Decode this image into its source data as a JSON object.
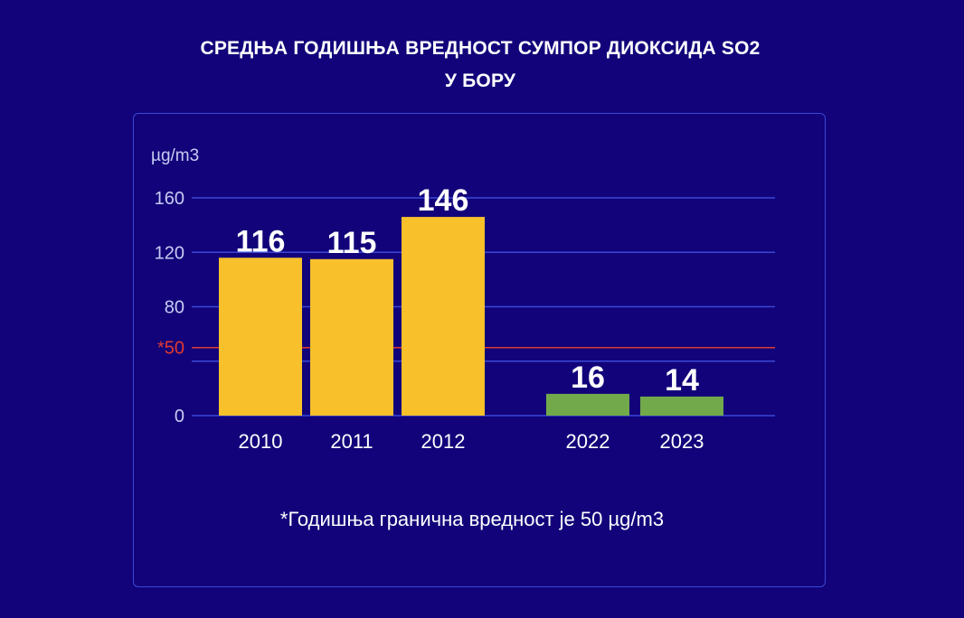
{
  "title": {
    "line1": "СРЕДЊА ГОДИШЊА ВРЕДНОСТ СУМПОР ДИОКСИДА SO2",
    "line2": "У БОРУ"
  },
  "chart_data": {
    "type": "bar",
    "ylabel": "µg/m3",
    "ylim": [
      0,
      160
    ],
    "yticks": [
      "0",
      "80",
      "120",
      "160"
    ],
    "grid": true,
    "categories": [
      "2010",
      "2011",
      "2012",
      "2022",
      "2023"
    ],
    "values": [
      116,
      115,
      146,
      16,
      14
    ],
    "data_labels": [
      "116",
      "115",
      "146",
      "16",
      "14"
    ],
    "bar_colors": [
      "#f8c02b",
      "#f8c02b",
      "#f8c02b",
      "#72a94a",
      "#72a94a"
    ],
    "limit_line": {
      "value": 50,
      "label": "*50",
      "color": "#e03a2f"
    }
  },
  "footnote": "*Годишња гранична вредност је 50 µg/m3",
  "colors": {
    "background": "#12037a",
    "grid": "#3a48d6",
    "axis_text": "#c8cbf2"
  }
}
